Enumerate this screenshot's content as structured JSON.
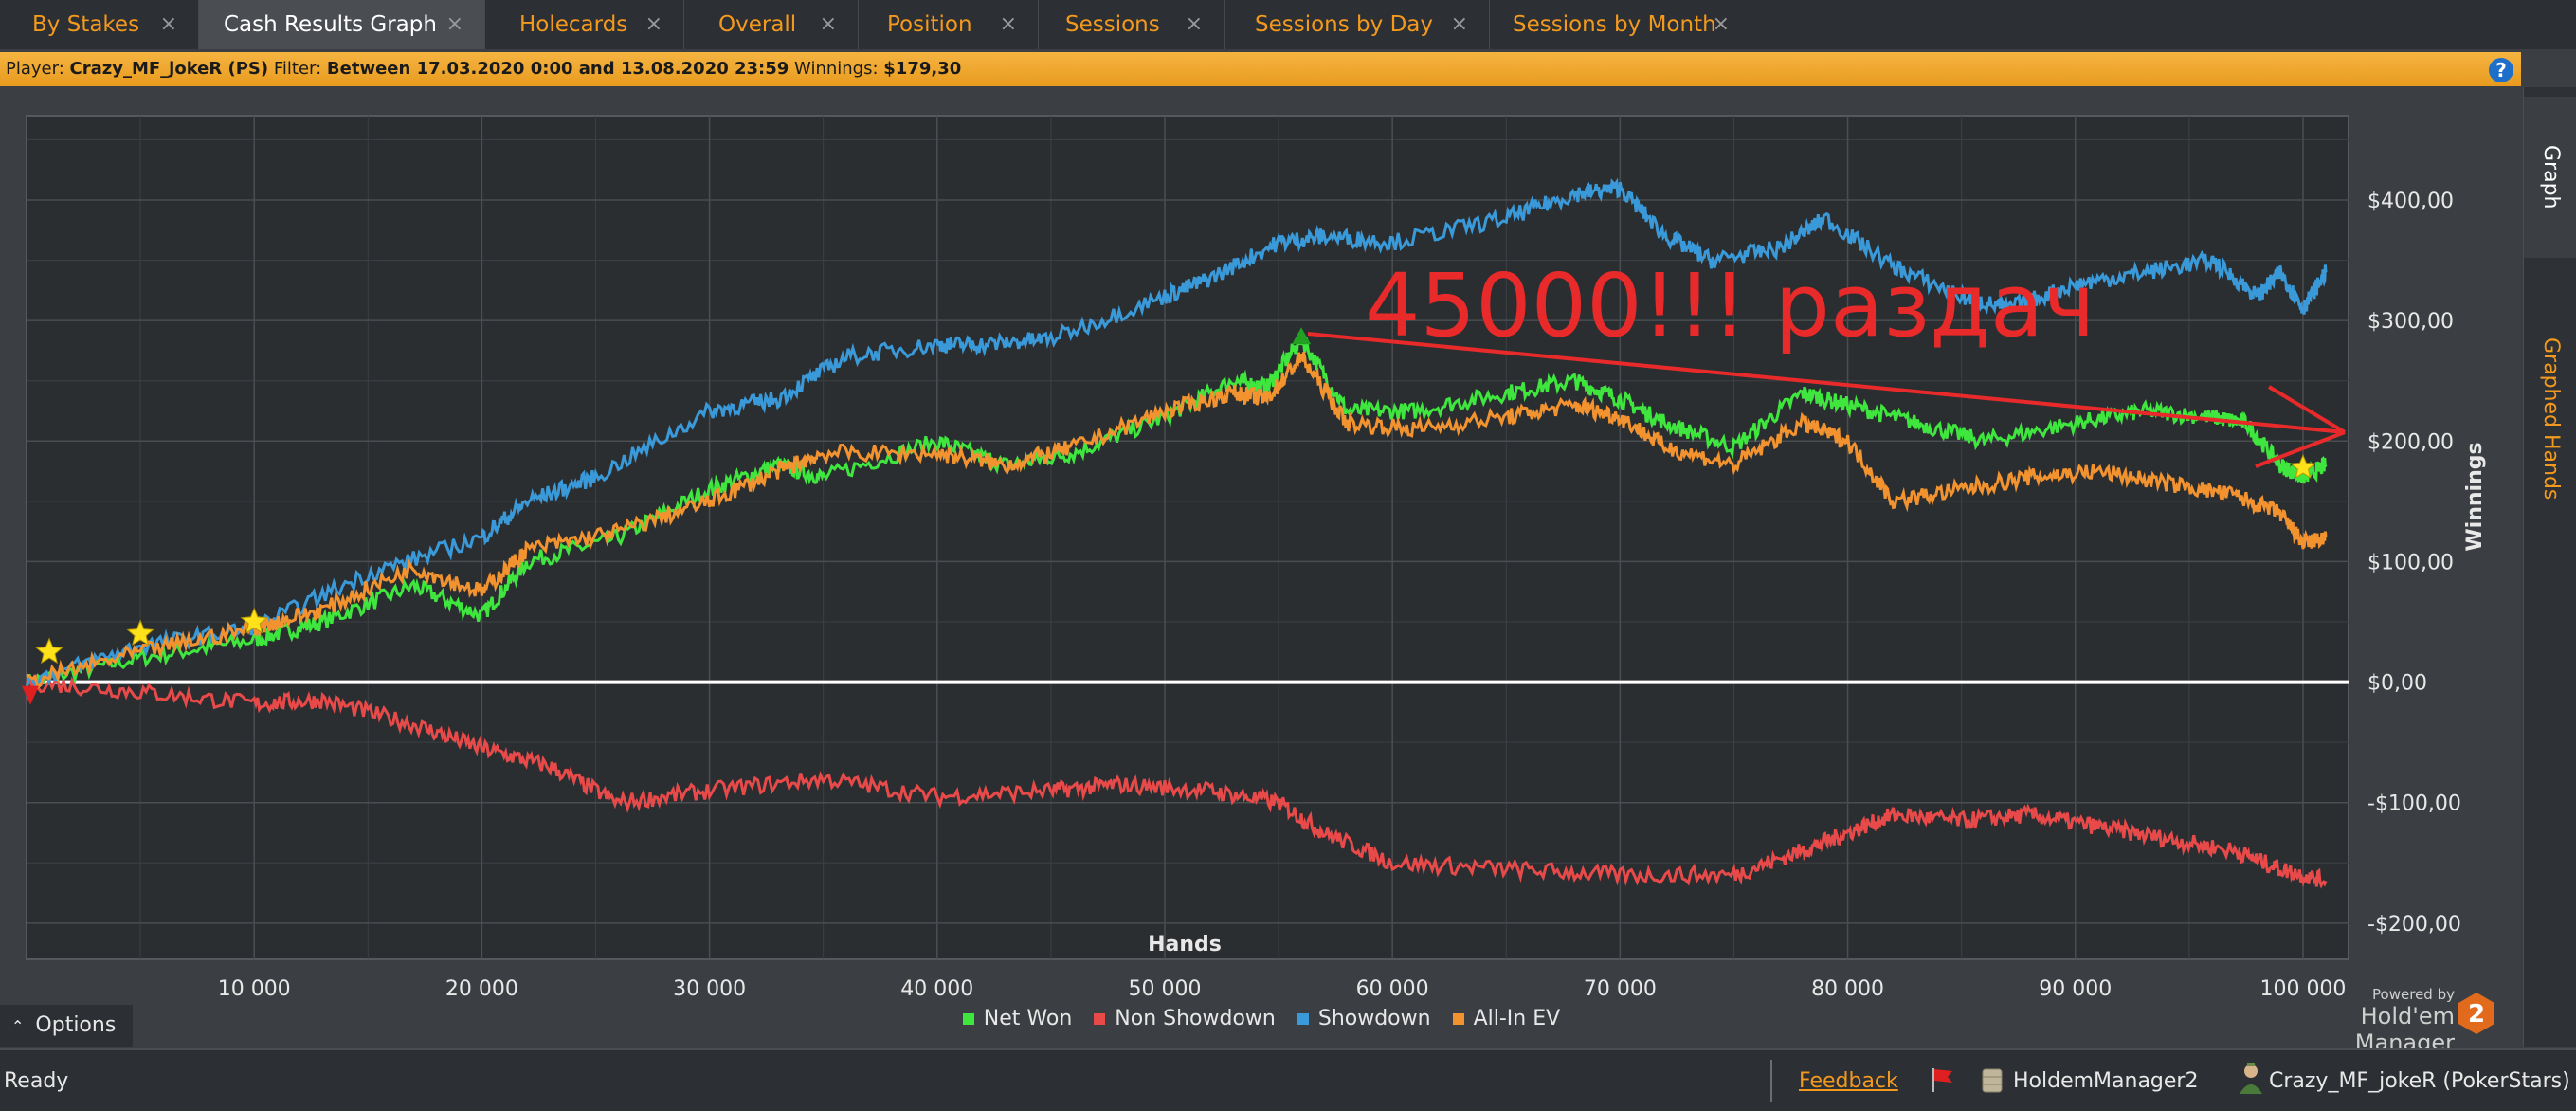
{
  "tabs": [
    {
      "label": "By Stakes"
    },
    {
      "label": "Cash Results Graph"
    },
    {
      "label": "Holecards"
    },
    {
      "label": "Overall"
    },
    {
      "label": "Position"
    },
    {
      "label": "Sessions"
    },
    {
      "label": "Sessions by Day"
    },
    {
      "label": "Sessions by Month"
    }
  ],
  "close_glyph": "×",
  "infobar": {
    "player_label": "Player:",
    "player": "Crazy_MF_jokeR (PS)",
    "filter_label": "Filter:",
    "filter": "Between 17.03.2020 0:00 and 13.08.2020 23:59",
    "winnings_label": "Winnings:",
    "winnings": "$179,30",
    "help": "?"
  },
  "side_tabs": {
    "graph": "Graph",
    "graphed_hands": "Graphed Hands"
  },
  "annotation": "45000!!! раздач",
  "chart_data": {
    "type": "line",
    "xlabel": "Hands",
    "ylabel": "Winnings",
    "xlim": [
      0,
      102000
    ],
    "ylim": [
      -230,
      470
    ],
    "x_ticks": [
      10000,
      20000,
      30000,
      40000,
      50000,
      60000,
      70000,
      80000,
      90000,
      100000
    ],
    "x_tick_labels": [
      "10 000",
      "20 000",
      "30 000",
      "40 000",
      "50 000",
      "60 000",
      "70 000",
      "80 000",
      "90 000",
      "100 000"
    ],
    "y_ticks": [
      400,
      300,
      200,
      100,
      0,
      -100,
      -200
    ],
    "y_tick_labels": [
      "$400,00",
      "$300,00",
      "$200,00",
      "$100,00",
      "$0,00",
      "-$100,00",
      "-$200,00"
    ],
    "grid": true,
    "series": [
      {
        "name": "Net Won",
        "color": "#3ee63e",
        "x": [
          0,
          5000,
          10000,
          13000,
          17000,
          20000,
          22000,
          26000,
          30000,
          33000,
          35000,
          40000,
          43000,
          46000,
          50000,
          53000,
          54500,
          56000,
          58000,
          61000,
          65000,
          68000,
          70000,
          72000,
          75000,
          78000,
          80000,
          83000,
          86000,
          90000,
          93000,
          96000,
          97500,
          99000,
          100000,
          101000
        ],
        "y": [
          0,
          20,
          35,
          50,
          80,
          55,
          100,
          120,
          160,
          180,
          170,
          200,
          180,
          190,
          220,
          250,
          245,
          285,
          225,
          225,
          240,
          250,
          235,
          215,
          195,
          240,
          230,
          215,
          200,
          215,
          225,
          220,
          215,
          180,
          170,
          180
        ]
      },
      {
        "name": "Non Showdown",
        "color": "#e84a4a",
        "x": [
          0,
          5000,
          10000,
          13000,
          17000,
          20000,
          23000,
          26000,
          30000,
          35000,
          40000,
          45000,
          48000,
          52000,
          55000,
          57000,
          60000,
          65000,
          70000,
          75000,
          78000,
          80000,
          82000,
          85000,
          88000,
          91000,
          94000,
          97000,
          99000,
          101000
        ],
        "y": [
          0,
          -8,
          -18,
          -15,
          -35,
          -55,
          -70,
          -100,
          -90,
          -80,
          -95,
          -90,
          -85,
          -90,
          -100,
          -125,
          -150,
          -155,
          -160,
          -160,
          -140,
          -125,
          -110,
          -115,
          -110,
          -120,
          -130,
          -140,
          -155,
          -165
        ]
      },
      {
        "name": "Showdown",
        "color": "#3a9ad9",
        "x": [
          0,
          5000,
          10000,
          15000,
          20000,
          22000,
          25000,
          30000,
          33000,
          36000,
          40000,
          42000,
          45000,
          50000,
          52000,
          55000,
          57000,
          60000,
          65000,
          68000,
          70000,
          72000,
          74000,
          77000,
          79000,
          82000,
          85000,
          87000,
          90000,
          93000,
          96000,
          98000,
          99000,
          100000,
          101000
        ],
        "y": [
          0,
          30,
          45,
          90,
          120,
          150,
          170,
          225,
          235,
          270,
          280,
          280,
          285,
          320,
          335,
          365,
          370,
          365,
          385,
          405,
          410,
          370,
          350,
          360,
          385,
          345,
          320,
          310,
          330,
          340,
          350,
          320,
          340,
          310,
          340
        ]
      },
      {
        "name": "All-In EV",
        "color": "#f2932f",
        "x": [
          0,
          5000,
          10000,
          13000,
          17000,
          20000,
          22000,
          26000,
          30000,
          33000,
          35000,
          40000,
          43000,
          46000,
          50000,
          53000,
          54500,
          56000,
          58000,
          61000,
          65000,
          68000,
          70000,
          72000,
          75000,
          78000,
          80000,
          82000,
          85000,
          88000,
          91000,
          94000,
          97000,
          99000,
          100000,
          101000
        ],
        "y": [
          0,
          25,
          45,
          60,
          95,
          75,
          110,
          125,
          150,
          175,
          190,
          190,
          180,
          195,
          225,
          240,
          235,
          270,
          215,
          210,
          220,
          230,
          220,
          195,
          180,
          215,
          200,
          150,
          160,
          170,
          175,
          165,
          155,
          140,
          115,
          120
        ]
      }
    ]
  },
  "legend": [
    "Net Won",
    "Non Showdown",
    "Showdown",
    "All-In EV"
  ],
  "options_label": "Options",
  "powered": {
    "line1": "Powered by",
    "line2": "Hold'em Manager",
    "logo_digit": "2"
  },
  "status": {
    "text": "Ready",
    "feedback": "Feedback",
    "db": "HoldemManager2",
    "user": "Crazy_MF_jokeR (PokerStars)"
  }
}
